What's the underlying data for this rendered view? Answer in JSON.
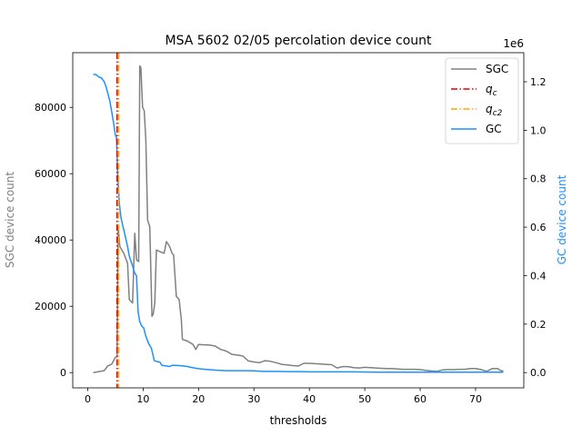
{
  "chart_data": {
    "type": "line",
    "title": "MSA 5602 02/05 percolation device count",
    "xlabel": "thresholds",
    "ylabel_left": "SGC device count",
    "ylabel_right": "GC device count",
    "right_axis_multiplier": "1e6",
    "xlim": [
      -2.7,
      78.7
    ],
    "ylim_left": [
      -4600,
      96500
    ],
    "ylim_right": [
      -0.063,
      1.32
    ],
    "x_ticks": [
      "0",
      "10",
      "20",
      "30",
      "40",
      "50",
      "60",
      "70"
    ],
    "y_ticks_left": [
      "0",
      "20000",
      "40000",
      "60000",
      "80000"
    ],
    "y_ticks_right": [
      "0.0",
      "0.2",
      "0.4",
      "0.6",
      "0.8",
      "1.0",
      "1.2"
    ],
    "legend_position": "top-right",
    "grid": false,
    "colors": {
      "SGC": "#808080",
      "q_c": "#e00000",
      "q_c2": "#ffa500",
      "GC": "#1e90ff",
      "left_label": "#808080",
      "right_label": "#1e90ff"
    },
    "legend": [
      {
        "key": "SGC",
        "label": "SGC",
        "style": "solid",
        "color": "#808080"
      },
      {
        "key": "q_c",
        "label": "q",
        "sub": "c",
        "style": "dashdot",
        "color": "#e00000"
      },
      {
        "key": "q_c2",
        "label": "q",
        "sub": "c2",
        "style": "dashdot",
        "color": "#ffa500"
      },
      {
        "key": "GC",
        "label": "GC",
        "style": "solid",
        "color": "#1e90ff"
      }
    ],
    "vlines": [
      {
        "name": "q_c",
        "x": 5.3,
        "color": "#e00000"
      },
      {
        "name": "q_c2",
        "x": 5.6,
        "color": "#ffa500"
      }
    ],
    "series": [
      {
        "name": "SGC",
        "axis": "left",
        "color": "#808080",
        "points": [
          [
            1,
            0
          ],
          [
            2,
            300
          ],
          [
            3,
            600
          ],
          [
            3.6,
            2000
          ],
          [
            4.3,
            2500
          ],
          [
            5,
            4600
          ],
          [
            5.3,
            4800
          ],
          [
            5.5,
            44000
          ],
          [
            5.8,
            38000
          ],
          [
            6.5,
            36000
          ],
          [
            7.2,
            33000
          ],
          [
            7.5,
            22000
          ],
          [
            8.1,
            21000
          ],
          [
            8.5,
            42000
          ],
          [
            8.8,
            34000
          ],
          [
            9.2,
            33500
          ],
          [
            9.4,
            92500
          ],
          [
            9.6,
            92000
          ],
          [
            9.9,
            80000
          ],
          [
            10.2,
            79000
          ],
          [
            10.5,
            70000
          ],
          [
            10.8,
            46000
          ],
          [
            11.2,
            44000
          ],
          [
            11.6,
            17000
          ],
          [
            11.8,
            17500
          ],
          [
            12.1,
            21000
          ],
          [
            12.4,
            37000
          ],
          [
            13,
            36500
          ],
          [
            13.8,
            36000
          ],
          [
            14.2,
            39500
          ],
          [
            14.8,
            38000
          ],
          [
            15.2,
            36000
          ],
          [
            15.5,
            35500
          ],
          [
            16,
            23000
          ],
          [
            16.5,
            22000
          ],
          [
            16.9,
            16000
          ],
          [
            17.1,
            10000
          ],
          [
            18,
            9500
          ],
          [
            19,
            8500
          ],
          [
            19.5,
            7000
          ],
          [
            20,
            8500
          ],
          [
            21,
            8400
          ],
          [
            22,
            8300
          ],
          [
            23,
            8000
          ],
          [
            24,
            7000
          ],
          [
            25,
            6500
          ],
          [
            26,
            5500
          ],
          [
            27,
            5300
          ],
          [
            28,
            5000
          ],
          [
            29,
            3500
          ],
          [
            30,
            3200
          ],
          [
            31,
            3000
          ],
          [
            32,
            3600
          ],
          [
            33,
            3400
          ],
          [
            34,
            3000
          ],
          [
            35,
            2500
          ],
          [
            36,
            2300
          ],
          [
            37,
            2100
          ],
          [
            38,
            2000
          ],
          [
            39,
            2800
          ],
          [
            40,
            2800
          ],
          [
            41,
            2700
          ],
          [
            42,
            2600
          ],
          [
            43,
            2500
          ],
          [
            44,
            2400
          ],
          [
            45,
            1400
          ],
          [
            46,
            1800
          ],
          [
            47,
            1800
          ],
          [
            48,
            1500
          ],
          [
            49,
            1400
          ],
          [
            50,
            1600
          ],
          [
            51,
            1500
          ],
          [
            52,
            1400
          ],
          [
            53,
            1300
          ],
          [
            54,
            1200
          ],
          [
            55,
            1200
          ],
          [
            56,
            1100
          ],
          [
            57,
            1000
          ],
          [
            58,
            1000
          ],
          [
            59,
            1000
          ],
          [
            60,
            900
          ],
          [
            61,
            700
          ],
          [
            62,
            500
          ],
          [
            63,
            400
          ],
          [
            64,
            800
          ],
          [
            65,
            900
          ],
          [
            66,
            900
          ],
          [
            67,
            1000
          ],
          [
            68,
            1000
          ],
          [
            69,
            1200
          ],
          [
            70,
            1200
          ],
          [
            71,
            900
          ],
          [
            72,
            400
          ],
          [
            73,
            1200
          ],
          [
            74,
            1200
          ],
          [
            74.5,
            600
          ],
          [
            75,
            500
          ]
        ]
      },
      {
        "name": "GC",
        "axis": "right",
        "color": "#1e90ff",
        "points": [
          [
            1,
            1.23
          ],
          [
            1.5,
            1.23
          ],
          [
            2,
            1.22
          ],
          [
            2.5,
            1.215
          ],
          [
            3,
            1.2
          ],
          [
            3.3,
            1.18
          ],
          [
            3.6,
            1.155
          ],
          [
            4,
            1.12
          ],
          [
            4.3,
            1.08
          ],
          [
            4.6,
            1.04
          ],
          [
            5,
            0.98
          ],
          [
            5.2,
            0.97
          ],
          [
            5.4,
            0.82
          ],
          [
            5.7,
            0.7
          ],
          [
            6,
            0.64
          ],
          [
            6.3,
            0.61
          ],
          [
            6.6,
            0.58
          ],
          [
            6.9,
            0.55
          ],
          [
            7.2,
            0.52
          ],
          [
            7.5,
            0.48
          ],
          [
            7.8,
            0.46
          ],
          [
            8.1,
            0.44
          ],
          [
            8.5,
            0.41
          ],
          [
            8.8,
            0.4
          ],
          [
            9.1,
            0.25
          ],
          [
            9.4,
            0.21
          ],
          [
            9.8,
            0.19
          ],
          [
            10.1,
            0.185
          ],
          [
            10.5,
            0.15
          ],
          [
            11,
            0.12
          ],
          [
            11.5,
            0.1
          ],
          [
            11.8,
            0.07
          ],
          [
            12,
            0.05
          ],
          [
            12.6,
            0.045
          ],
          [
            13,
            0.044
          ],
          [
            13.4,
            0.03
          ],
          [
            14,
            0.028
          ],
          [
            14.8,
            0.025
          ],
          [
            15.2,
            0.03
          ],
          [
            16,
            0.03
          ],
          [
            17,
            0.028
          ],
          [
            18,
            0.025
          ],
          [
            19,
            0.02
          ],
          [
            20,
            0.016
          ],
          [
            21,
            0.014
          ],
          [
            22,
            0.012
          ],
          [
            23,
            0.01
          ],
          [
            24,
            0.009
          ],
          [
            25,
            0.008
          ],
          [
            26,
            0.008
          ],
          [
            27,
            0.008
          ],
          [
            28,
            0.008
          ],
          [
            29,
            0.008
          ],
          [
            30,
            0.007
          ],
          [
            31,
            0.006
          ],
          [
            32,
            0.005
          ],
          [
            34,
            0.005
          ],
          [
            36,
            0.004
          ],
          [
            38,
            0.004
          ],
          [
            40,
            0.003
          ],
          [
            44,
            0.003
          ],
          [
            48,
            0.003
          ],
          [
            52,
            0.002
          ],
          [
            56,
            0.002
          ],
          [
            60,
            0.002
          ],
          [
            64,
            0.002
          ],
          [
            68,
            0.002
          ],
          [
            72,
            0.002
          ],
          [
            75,
            0.002
          ]
        ]
      }
    ]
  }
}
